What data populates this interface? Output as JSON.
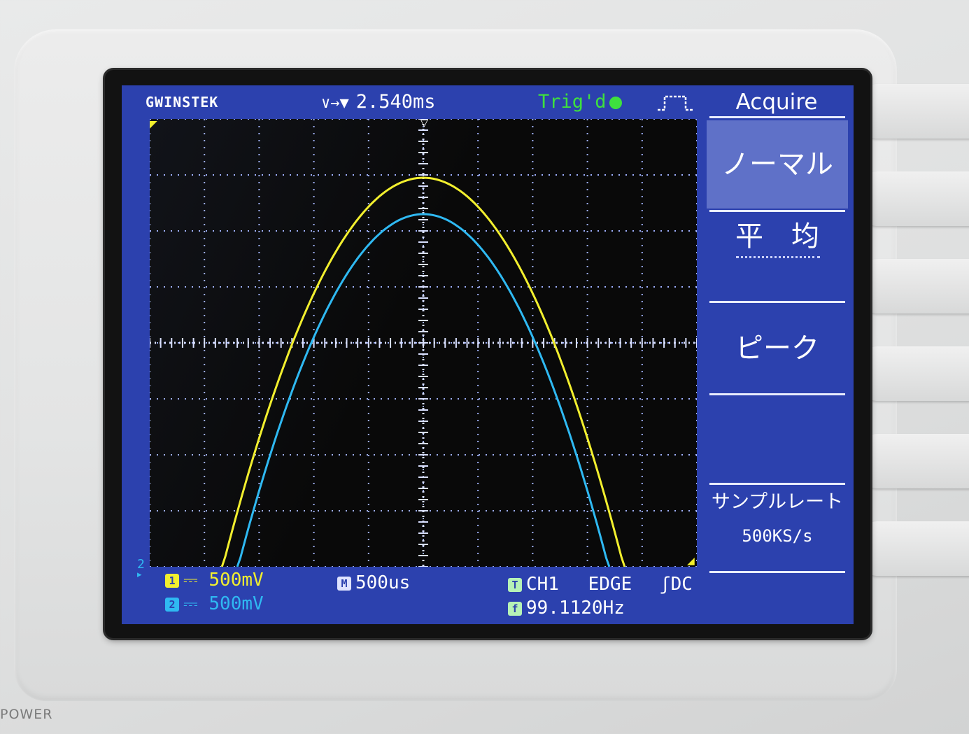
{
  "topbar": {
    "brand": "GWINSTEK",
    "trigger_position_arrows": "∨→▼",
    "trigger_position": "2.540ms",
    "trigger_status": "Trig'd",
    "trigger_icon": "pulse-edge-icon"
  },
  "menu": {
    "title": "Acquire",
    "options": [
      {
        "label": "ノーマル",
        "selected": true
      },
      {
        "label": "平　均",
        "selected": false
      },
      {
        "label": "ピーク",
        "selected": false
      }
    ],
    "sample_rate_label": "サンプルレート",
    "sample_rate_value": "500KS/s"
  },
  "readouts": {
    "ch1_badge": "1",
    "ch1_scale": "500mV",
    "ch2_badge": "2",
    "ch2_scale": "500mV",
    "timebase_badge": "M",
    "timebase": "500us",
    "trigger_badge": "T",
    "trigger_source": "CH1",
    "trigger_type": "EDGE",
    "trigger_slope_coupling": "DC",
    "frequency_badge": "f",
    "frequency": "99.1120Hz",
    "coupling_glyph": "⎓"
  },
  "markers": {
    "ground_ch2": "2",
    "ground_arrow": "▸"
  },
  "panel": {
    "power_label": "POWER"
  },
  "colors": {
    "ch1": "#f2ef2e",
    "ch2": "#2fb9f2",
    "screen_bg": "#2c41ae",
    "trig_green": "#3ee03e"
  },
  "grid": {
    "h_divisions": 10,
    "v_divisions": 8,
    "minor_per_div": 5
  },
  "traces": [
    {
      "name": "CH1",
      "color": "#f2ef2e",
      "peak_div": 2.95,
      "x_start_div": 1.32,
      "x_end_div": 8.68,
      "peak_x_div": 5.0
    },
    {
      "name": "CH2",
      "color": "#2fb9f2",
      "peak_div": 2.3,
      "x_start_div": 1.6,
      "x_end_div": 8.4,
      "peak_x_div": 5.0
    }
  ]
}
